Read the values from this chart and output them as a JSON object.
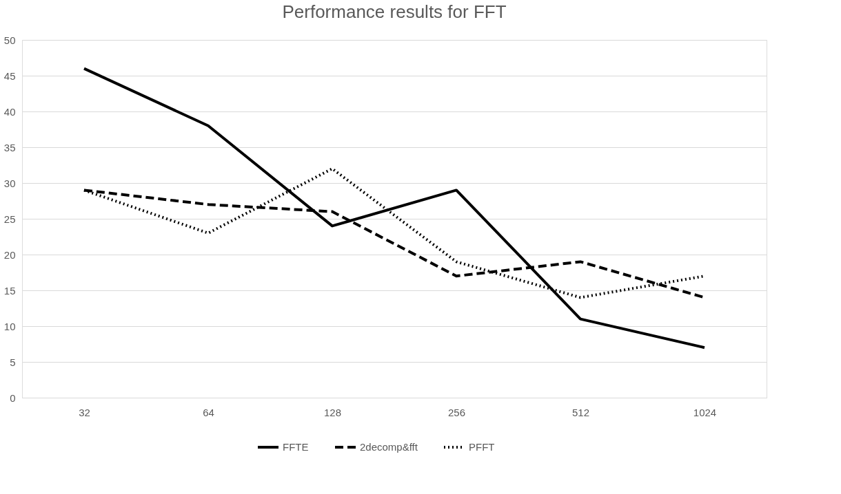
{
  "chart_data": {
    "type": "line",
    "title": "Performance results for FFT",
    "categories": [
      "32",
      "64",
      "128",
      "256",
      "512",
      "1024"
    ],
    "series": [
      {
        "name": "FFTE",
        "color": "#000000",
        "line_style": "solid",
        "values": [
          46,
          38,
          24,
          29,
          11,
          7
        ]
      },
      {
        "name": "2decomp&fft",
        "color": "#000000",
        "line_style": "dashed",
        "values": [
          29,
          27,
          26,
          17,
          19,
          14
        ]
      },
      {
        "name": "PFFT",
        "color": "#000000",
        "line_style": "dotted",
        "values": [
          29,
          23,
          32,
          19,
          14,
          17
        ]
      }
    ],
    "ylim": [
      0,
      50
    ],
    "yticks": [
      0,
      5,
      10,
      15,
      20,
      25,
      30,
      35,
      40,
      45,
      50
    ],
    "grid": "y",
    "legend": "bottom",
    "marker": "none"
  }
}
